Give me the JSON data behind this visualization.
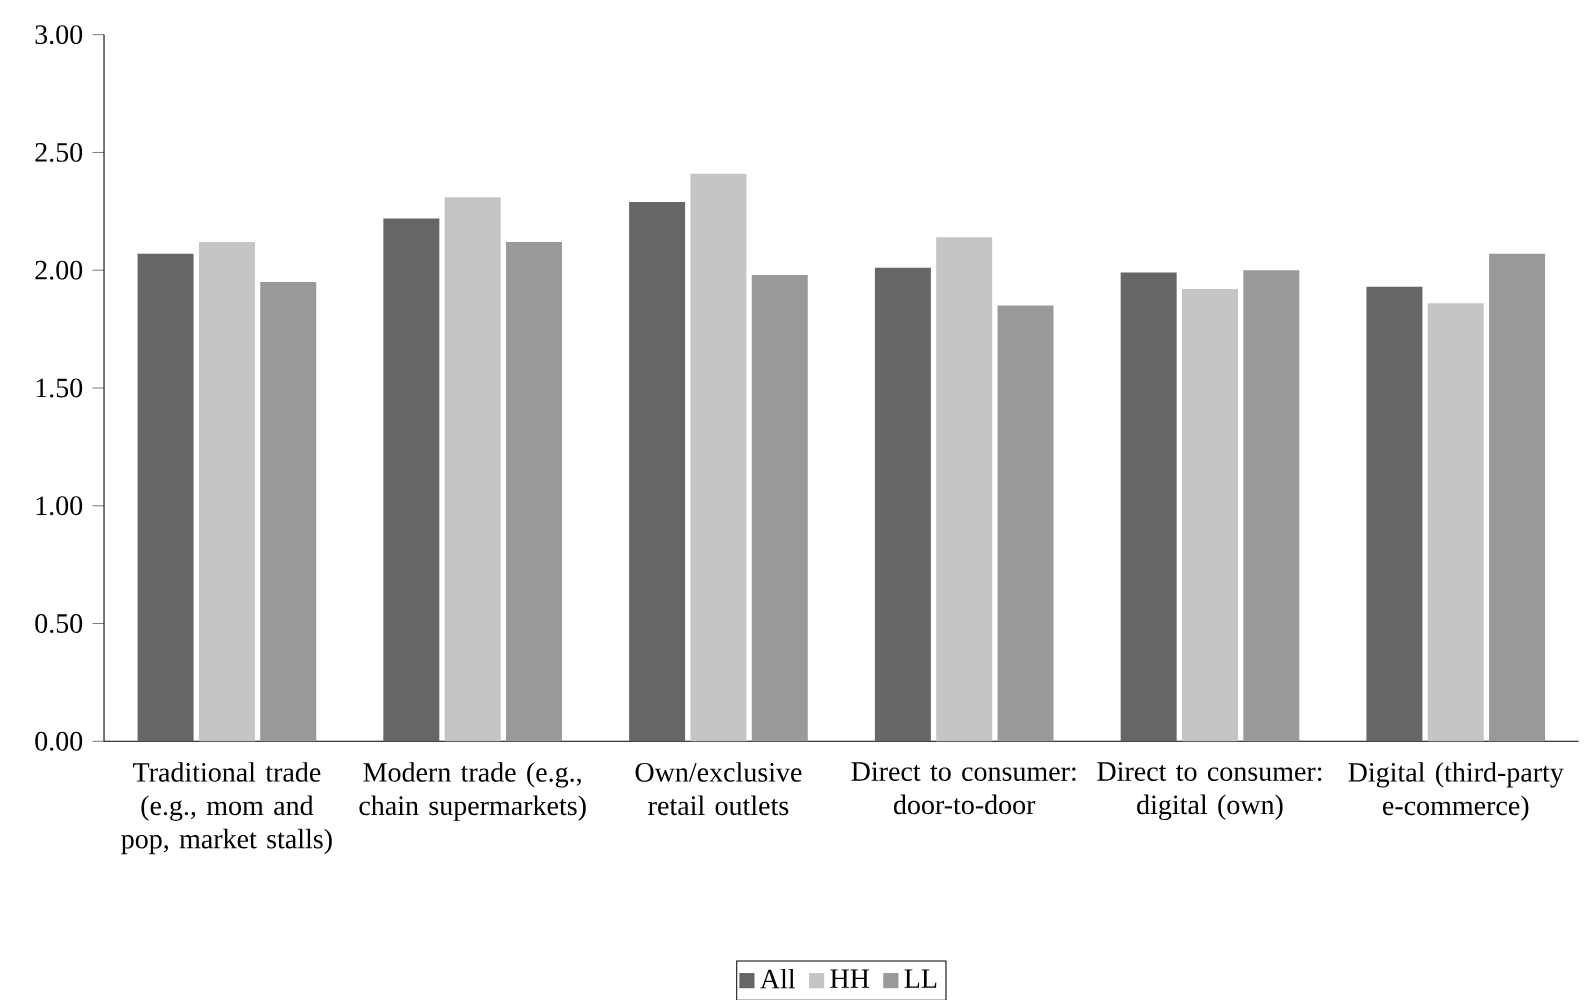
{
  "chart_data": {
    "type": "bar",
    "categories": [
      "Traditional trade (e.g., mom and pop, market stalls)",
      "Modern trade (e.g., chain supermarkets)",
      "Own/exclusive retail outlets",
      "Direct to consumer: door-to-door",
      "Direct to consumer: digital (own)",
      "Digital (third-party e-commerce)"
    ],
    "series": [
      {
        "name": "All",
        "color": "#666664",
        "values": [
          2.07,
          2.22,
          2.29,
          2.01,
          1.99,
          1.93
        ]
      },
      {
        "name": "HH",
        "color": "#c4c5c4",
        "values": [
          2.12,
          2.31,
          2.41,
          2.14,
          1.92,
          1.86
        ]
      },
      {
        "name": "LL",
        "color": "#999999",
        "values": [
          1.95,
          2.12,
          1.98,
          1.85,
          2.0,
          2.07
        ]
      }
    ],
    "ylim": [
      0,
      3
    ],
    "yticks": [
      {
        "value": 0,
        "label": "0.00"
      },
      {
        "value": 0.5,
        "label": "0.50"
      },
      {
        "value": 1,
        "label": "1.00"
      },
      {
        "value": 1.5,
        "label": "1.50"
      },
      {
        "value": 2,
        "label": "2.00"
      },
      {
        "value": 2.5,
        "label": "2.50"
      },
      {
        "value": 3,
        "label": "3.00"
      }
    ],
    "grid": false,
    "legend": "bottom"
  }
}
